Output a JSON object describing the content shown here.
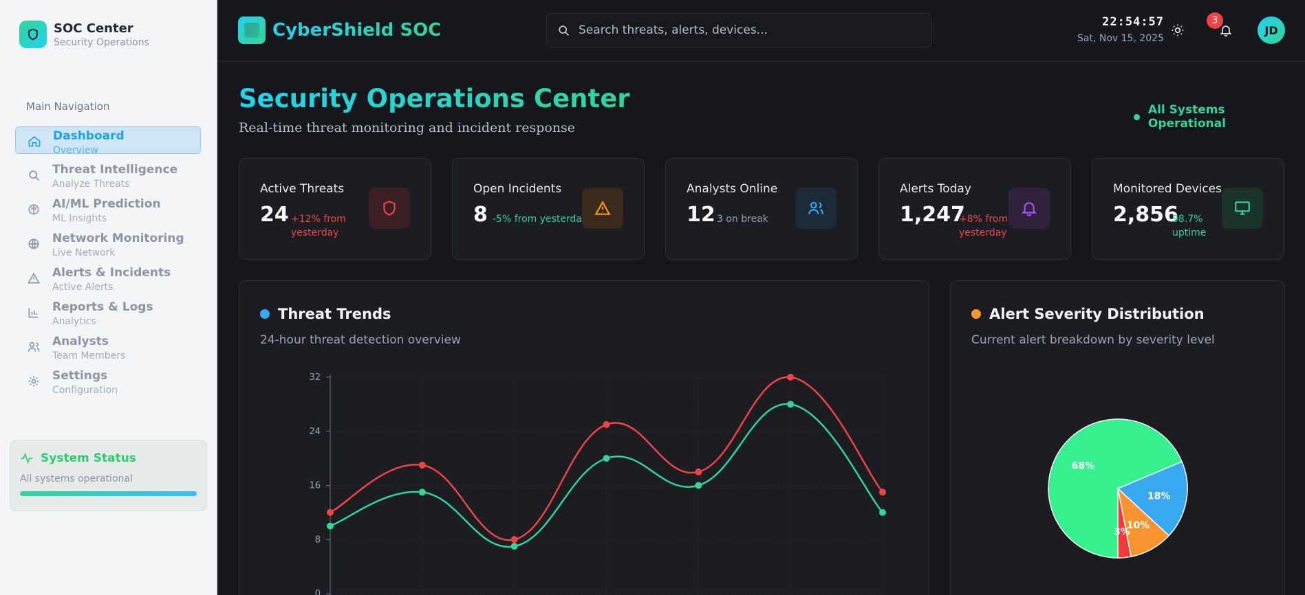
{
  "sidebar": {
    "brand_title": "SOC Center",
    "brand_sub": "Security Operations",
    "nav_heading": "Main Navigation",
    "items": [
      {
        "label": "Dashboard",
        "sub": "Overview",
        "icon": "home-icon"
      },
      {
        "label": "Threat Intelligence",
        "sub": "Analyze Threats",
        "icon": "search-icon"
      },
      {
        "label": "AI/ML Prediction",
        "sub": "ML Insights",
        "icon": "brain-icon"
      },
      {
        "label": "Network Monitoring",
        "sub": "Live Network",
        "icon": "globe-icon"
      },
      {
        "label": "Alerts & Incidents",
        "sub": "Active Alerts",
        "icon": "warning-icon"
      },
      {
        "label": "Reports & Logs",
        "sub": "Analytics",
        "icon": "bar-chart-icon"
      },
      {
        "label": "Analysts",
        "sub": "Team Members",
        "icon": "users-icon"
      },
      {
        "label": "Settings",
        "sub": "Configuration",
        "icon": "gear-icon"
      }
    ],
    "status": {
      "title": "System Status",
      "text": "All systems operational"
    }
  },
  "topbar": {
    "app_title": "CyberShield SOC",
    "search_placeholder": "Search threats, alerts, devices...",
    "time": "22:54:57",
    "date": "Sat, Nov 15, 2025",
    "notifications": "3",
    "avatar": "JD"
  },
  "main": {
    "title": "Security Operations Center",
    "subtitle": "Real-time threat monitoring and incident response",
    "system_status": "All Systems Operational",
    "stats": [
      {
        "label": "Active Threats",
        "value": "24",
        "delta_line1": "+12% from",
        "delta_line2": "yesterday",
        "color": "#ef4444",
        "icon": "shield-icon"
      },
      {
        "label": "Open Incidents",
        "value": "8",
        "delta_line1": "-5% from yesterday",
        "delta_line2": "",
        "color": "#34d399",
        "icon": "warning-icon"
      },
      {
        "label": "Analysts Online",
        "value": "12",
        "delta_line1": "3 on break",
        "delta_line2": "",
        "color": "#9ca3af",
        "icon": "users-icon"
      },
      {
        "label": "Alerts Today",
        "value": "1,247",
        "delta_line1": "+8% from",
        "delta_line2": "yesterday",
        "color": "#ef4444",
        "icon": "bell-icon"
      },
      {
        "label": "Monitored Devices",
        "value": "2,856",
        "delta_line1": "98.7%",
        "delta_line2": "uptime",
        "color": "#34d399",
        "icon": "monitor-icon"
      }
    ],
    "trends_panel": {
      "title": "Threat Trends",
      "subtitle": "24-hour threat detection overview"
    },
    "severity_panel": {
      "title": "Alert Severity Distribution",
      "subtitle": "Current alert breakdown by severity level"
    }
  },
  "chart_data": [
    {
      "type": "line",
      "x": [
        0,
        1,
        2,
        3,
        4,
        5,
        6
      ],
      "ylim": [
        0,
        32
      ],
      "yticks": [
        0,
        8,
        16,
        24,
        32
      ],
      "series": [
        {
          "values": [
            12,
            19,
            8,
            25,
            18,
            32,
            15
          ],
          "color": "#ef4444"
        },
        {
          "values": [
            10,
            15,
            7,
            20,
            16,
            28,
            12
          ],
          "color": "#34d399"
        }
      ]
    },
    {
      "type": "pie",
      "slices": [
        {
          "label": "68%",
          "value": 68,
          "color": "#34f08f"
        },
        {
          "label": "18%",
          "value": 18,
          "color": "#38a8f0"
        },
        {
          "label": "10%",
          "value": 10,
          "color": "#f7942f"
        },
        {
          "label": "3%",
          "value": 3,
          "color": "#ef3b3b"
        }
      ]
    }
  ]
}
